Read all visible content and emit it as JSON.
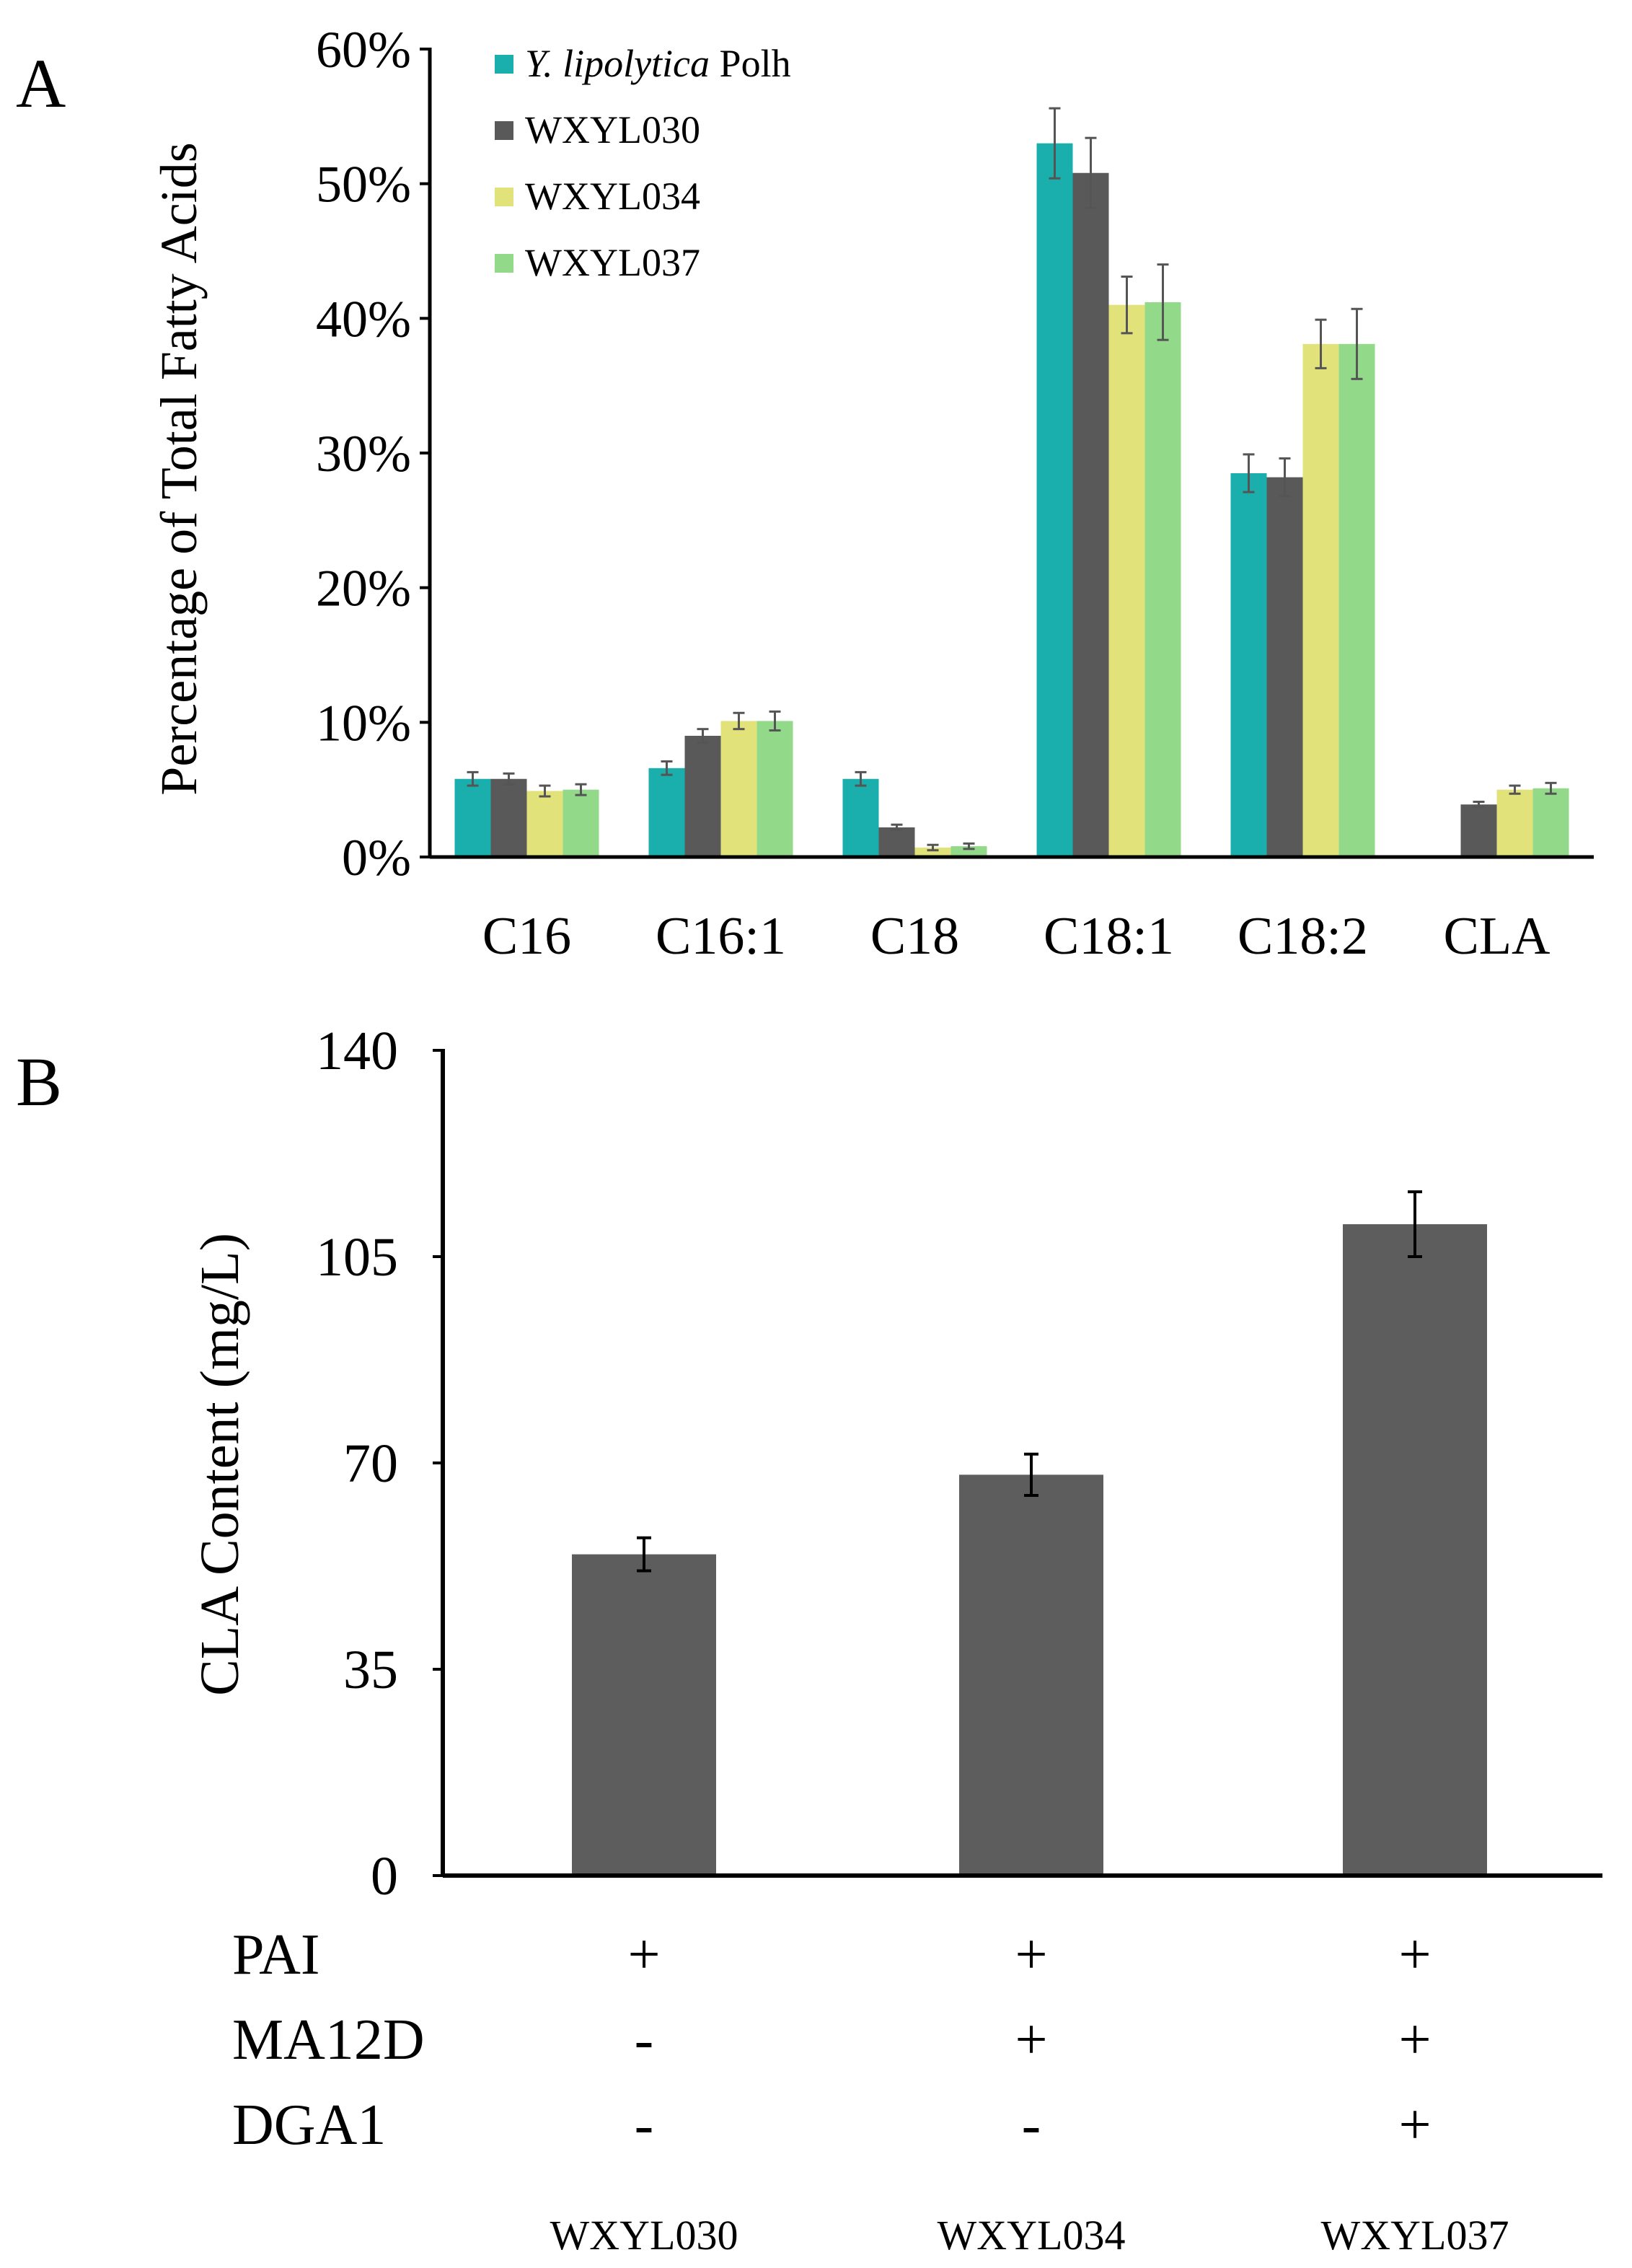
{
  "chart_data": [
    {
      "panel_label": "A",
      "type": "bar",
      "ylabel": "Percentage of Total Fatty Acids",
      "ylim": [
        0,
        60
      ],
      "yticks": [
        0,
        10,
        20,
        30,
        40,
        50,
        60
      ],
      "ytick_labels": [
        "0%",
        "10%",
        "20%",
        "30%",
        "40%",
        "50%",
        "60%"
      ],
      "categories": [
        "C16",
        "C16:1",
        "C18",
        "C18:1",
        "C18:2",
        "CLA"
      ],
      "legend_position": "top-left",
      "grid": false,
      "series": [
        {
          "name_italic": "Y. lipolytica",
          "name_rest": " Polh",
          "color": "#1aafad",
          "values": [
            5.8,
            6.6,
            5.8,
            53.0,
            28.5,
            null
          ],
          "errors": [
            0.5,
            0.5,
            0.5,
            2.6,
            1.4,
            null
          ]
        },
        {
          "name": "WXYL030",
          "color": "#595959",
          "values": [
            5.8,
            9.0,
            2.2,
            50.8,
            28.2,
            3.9
          ],
          "errors": [
            0.4,
            0.5,
            0.2,
            2.6,
            1.4,
            0.2
          ]
        },
        {
          "name": "WXYL034",
          "color": "#e2e27a",
          "values": [
            4.9,
            10.1,
            0.7,
            41.0,
            38.1,
            5.0
          ],
          "errors": [
            0.4,
            0.6,
            0.2,
            2.1,
            1.8,
            0.3
          ]
        },
        {
          "name": "WXYL037",
          "color": "#93d98a",
          "values": [
            5.0,
            10.1,
            0.8,
            41.2,
            38.1,
            5.1
          ],
          "errors": [
            0.4,
            0.7,
            0.2,
            2.8,
            2.6,
            0.4
          ]
        }
      ]
    },
    {
      "panel_label": "B",
      "type": "bar",
      "ylabel": "CLA Content (mg/L)",
      "ylim": [
        0,
        140
      ],
      "yticks": [
        0,
        35,
        70,
        105,
        140
      ],
      "categories": [
        "WXYL030",
        "WXYL034",
        "WXYL037"
      ],
      "values": [
        54.5,
        68.0,
        110.5
      ],
      "errors": [
        2.8,
        3.5,
        5.5
      ],
      "bar_color": "#5d5d5d",
      "genotype_table": [
        {
          "gene": "PAI",
          "signs": [
            "+",
            "+",
            "+"
          ]
        },
        {
          "gene": "MA12D",
          "signs": [
            "-",
            "+",
            "+"
          ]
        },
        {
          "gene": "DGA1",
          "signs": [
            "-",
            "-",
            "+"
          ]
        }
      ]
    }
  ]
}
